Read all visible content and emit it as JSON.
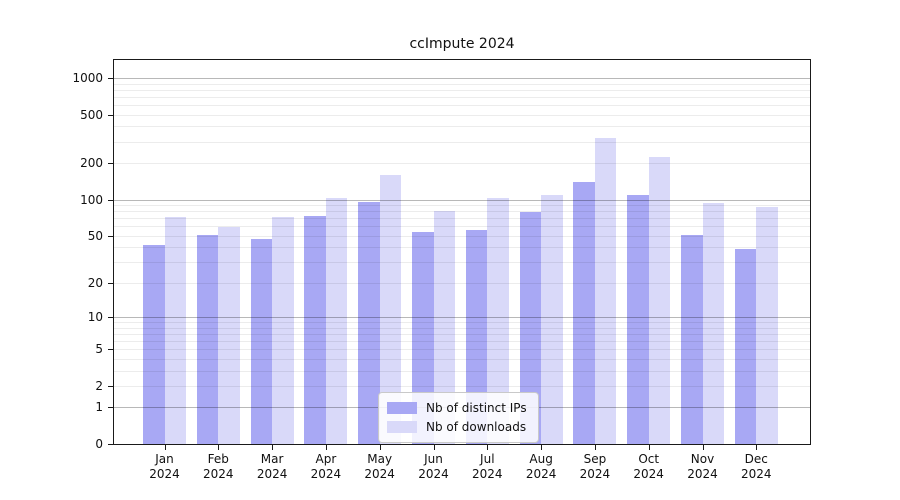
{
  "chart_data": {
    "type": "bar",
    "title": "ccImpute 2024",
    "categories": [
      "Jan",
      "Feb",
      "Mar",
      "Apr",
      "May",
      "Jun",
      "Jul",
      "Aug",
      "Sep",
      "Oct",
      "Nov",
      "Dec"
    ],
    "year": "2024",
    "series": [
      {
        "name": "Nb of distinct IPs",
        "color": "#a8a8f4",
        "values": [
          42,
          51,
          47,
          73,
          96,
          54,
          56,
          79,
          140,
          110,
          51,
          39
        ]
      },
      {
        "name": "Nb of downloads",
        "color": "#d9d9f9",
        "values": [
          71,
          59,
          72,
          102,
          160,
          81,
          103,
          110,
          320,
          225,
          94,
          87
        ]
      }
    ],
    "ylabel": "",
    "xlabel": "",
    "y_ticks": [
      0,
      1,
      2,
      5,
      10,
      20,
      50,
      100,
      200,
      500,
      1000
    ],
    "scale": "log10(1+y)",
    "ylim": [
      0,
      1400
    ],
    "grid": "horizontal major at powers of 10, minor at 2-9 per decade",
    "legend_position": "lower center"
  }
}
